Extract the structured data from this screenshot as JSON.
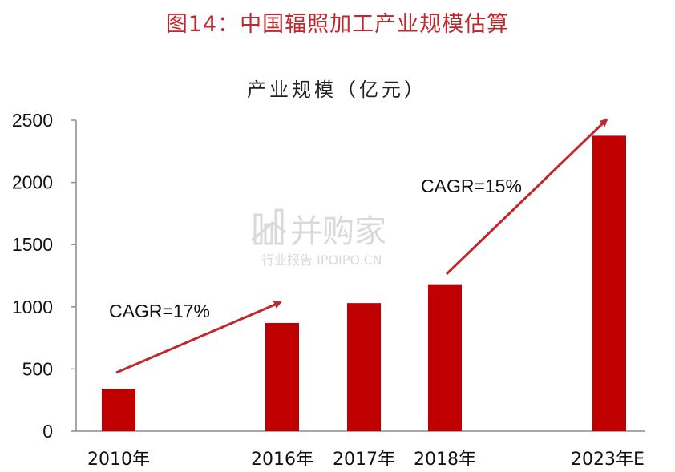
{
  "figure_title": "图14：中国辐照加工产业规模估算",
  "watermark": {
    "brand": "并购家",
    "sub": "行业报告 IPOIPO.CN"
  },
  "colors": {
    "bar": "#c00000",
    "arrow": "#c0282e",
    "title": "#c0282e"
  },
  "chart_data": {
    "type": "bar",
    "title": "产业规模（亿元）",
    "xlabel": "",
    "ylabel": "",
    "categories": [
      "2010年",
      "2016年",
      "2017年",
      "2018年",
      "2023年E"
    ],
    "values": [
      340,
      870,
      1030,
      1175,
      2375
    ],
    "ylim": [
      0,
      2500
    ],
    "yticks": [
      0,
      500,
      1000,
      1500,
      2000,
      2500
    ],
    "grid": false,
    "legend": "none",
    "annotations": [
      {
        "text": "CAGR=17%",
        "from": "2010年",
        "to": "2016年"
      },
      {
        "text": "CAGR=15%",
        "from": "2018年",
        "to": "2023年E"
      }
    ]
  }
}
